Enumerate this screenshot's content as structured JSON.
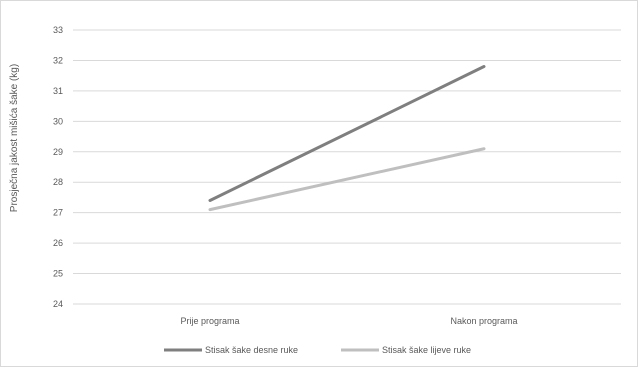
{
  "chart_data": {
    "type": "line",
    "categories": [
      "Prije programa",
      "Nakon programa"
    ],
    "series": [
      {
        "name": "Stisak šake desne ruke",
        "values": [
          27.4,
          31.8
        ],
        "color": "#7f7f7f"
      },
      {
        "name": "Stisak šake lijeve ruke",
        "values": [
          27.1,
          29.1
        ],
        "color": "#bfbfbf"
      }
    ],
    "ylabel": "Prosječna jakost mišića šake (kg)",
    "ylim": [
      24,
      33
    ],
    "yticks": [
      24,
      25,
      26,
      27,
      28,
      29,
      30,
      31,
      32,
      33
    ],
    "grid": true,
    "legend_position": "bottom"
  }
}
